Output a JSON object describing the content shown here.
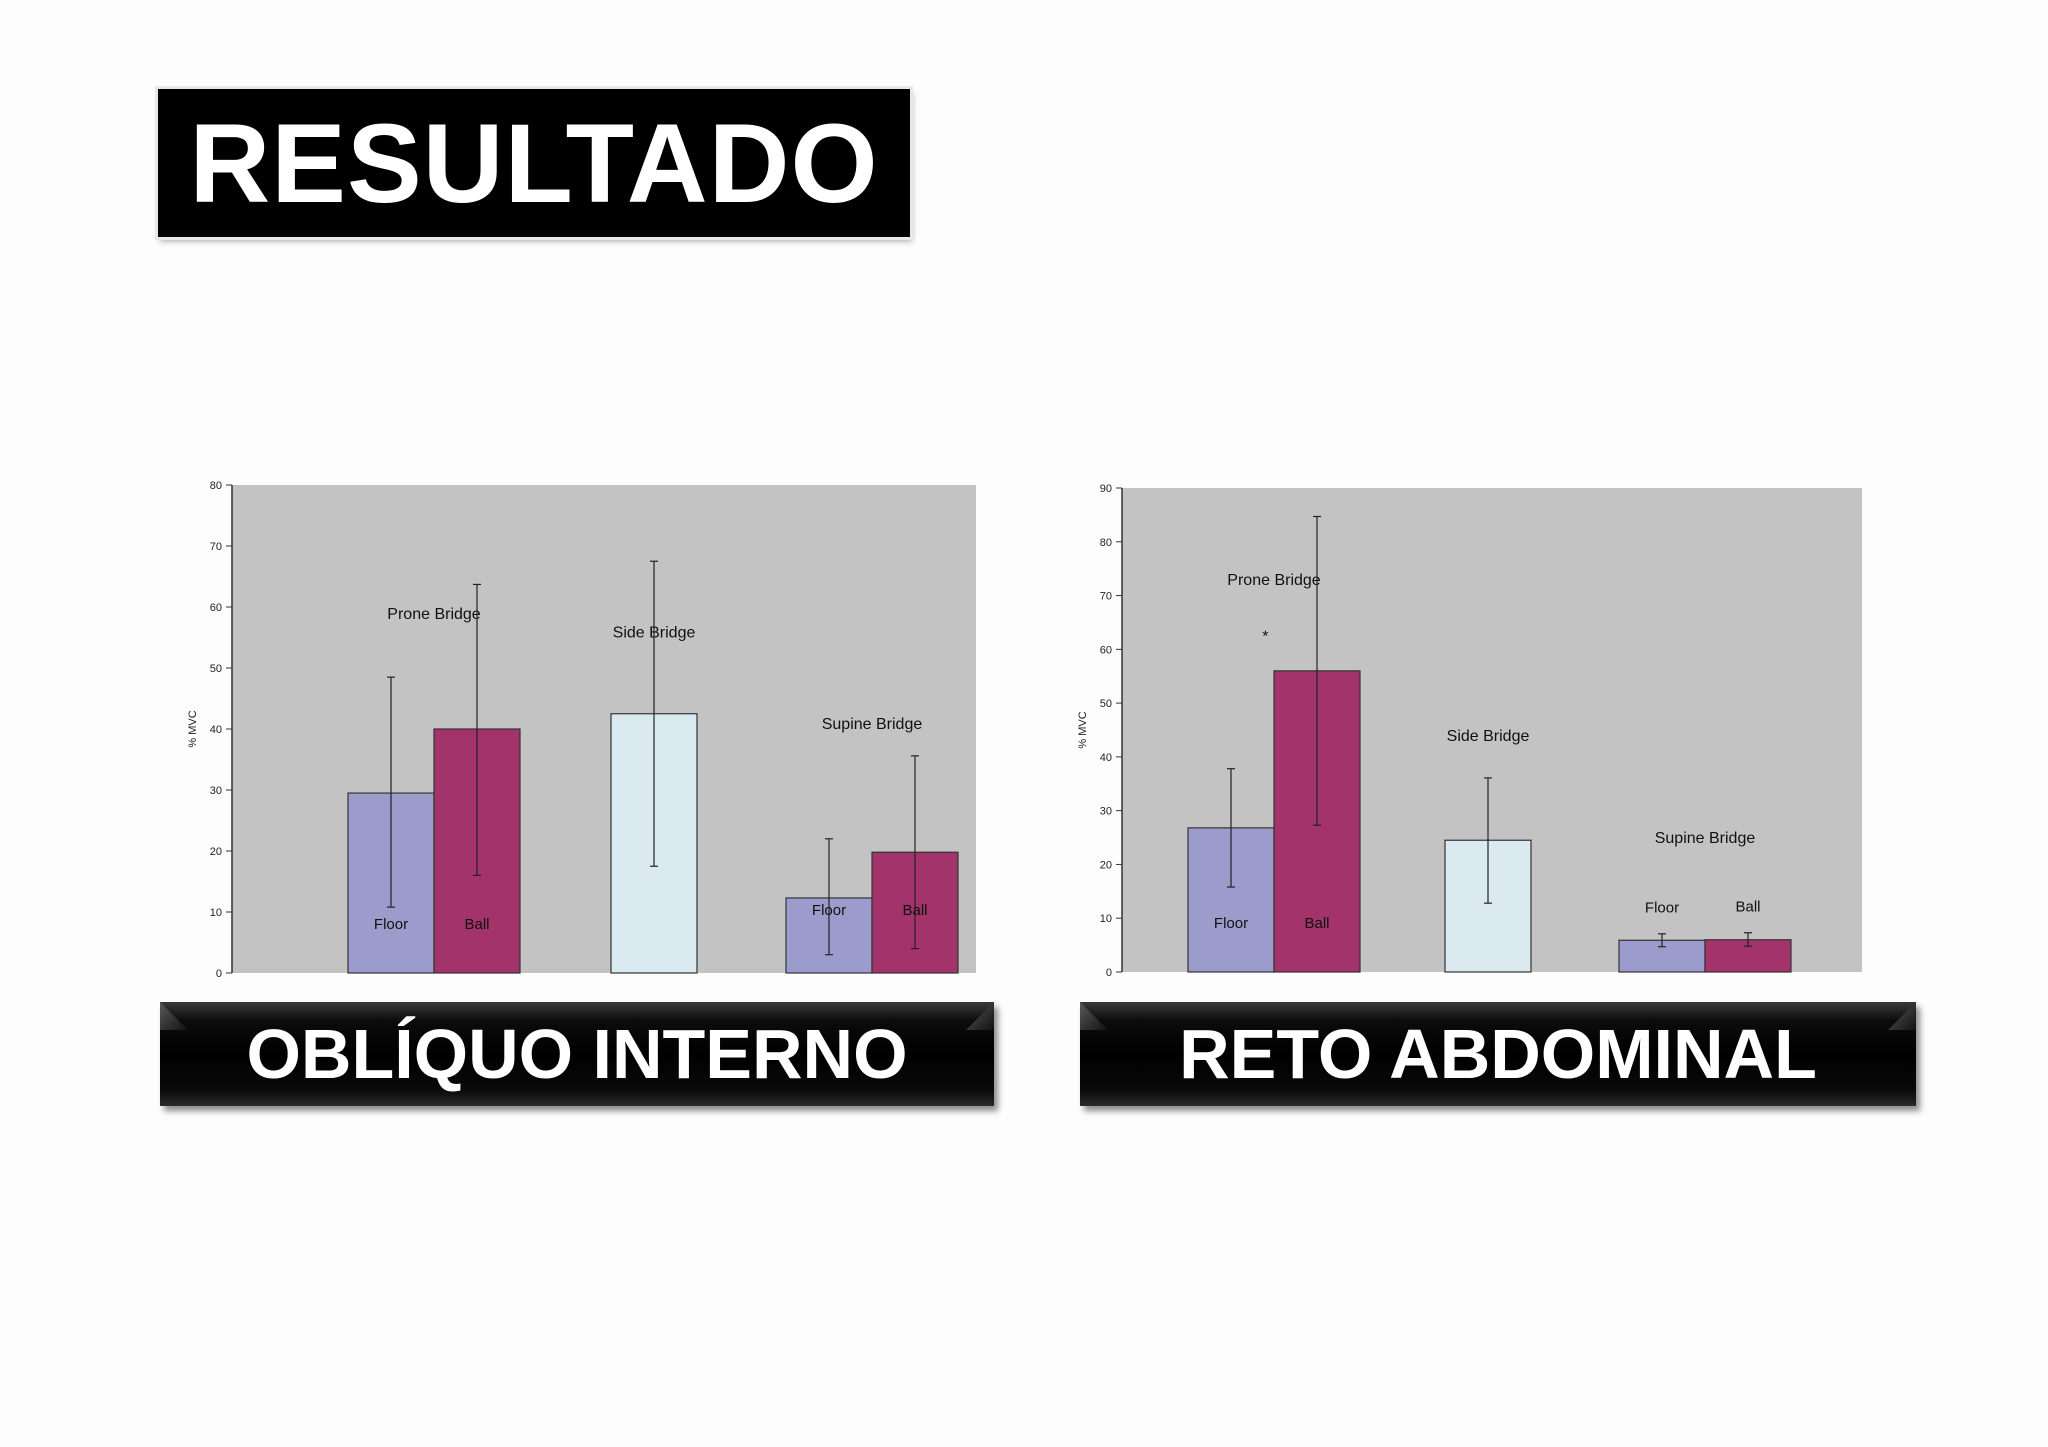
{
  "title": "RESULTADO",
  "banners": {
    "left": "OBLÍQUO INTERNO",
    "right": "RETO ABDOMINAL"
  },
  "colors": {
    "plot_bg": "#c3c3c3",
    "floor": "#9c9ccc",
    "ball": "#a3336b",
    "side": "#daeaf0"
  },
  "chart_data": [
    {
      "type": "bar",
      "ylabel": "% MVC",
      "ylim": [
        0,
        80
      ],
      "yticks": [
        0,
        10,
        20,
        30,
        40,
        50,
        60,
        70,
        80
      ],
      "grid": false,
      "groups": [
        {
          "label": "Prone Bridge",
          "bars": [
            {
              "label": "Floor",
              "value": 29.5,
              "err_low": 10.8,
              "err_high": 48.5,
              "color": "floor"
            },
            {
              "label": "Ball",
              "value": 40,
              "err_low": 16,
              "err_high": 63.7,
              "color": "ball"
            }
          ]
        },
        {
          "label": "Side Bridge",
          "bars": [
            {
              "label": "",
              "value": 42.5,
              "err_low": 17.5,
              "err_high": 67.5,
              "color": "side"
            }
          ]
        },
        {
          "label": "Supine Bridge",
          "bars": [
            {
              "label": "Floor",
              "value": 12.3,
              "err_low": 3,
              "err_high": 22,
              "color": "floor"
            },
            {
              "label": "Ball",
              "value": 19.8,
              "err_low": 4,
              "err_high": 35.6,
              "color": "ball"
            }
          ]
        }
      ],
      "annotations": []
    },
    {
      "type": "bar",
      "ylabel": "% MVC",
      "ylim": [
        0,
        90
      ],
      "yticks": [
        0,
        10,
        20,
        30,
        40,
        50,
        60,
        70,
        80,
        90
      ],
      "grid": false,
      "groups": [
        {
          "label": "Prone Bridge",
          "bars": [
            {
              "label": "Floor",
              "value": 26.8,
              "err_low": 15.8,
              "err_high": 37.8,
              "color": "floor"
            },
            {
              "label": "Ball",
              "value": 56,
              "err_low": 27.3,
              "err_high": 84.7,
              "color": "ball"
            }
          ]
        },
        {
          "label": "Side Bridge",
          "bars": [
            {
              "label": "",
              "value": 24.5,
              "err_low": 12.8,
              "err_high": 36.1,
              "color": "side"
            }
          ]
        },
        {
          "label": "Supine Bridge",
          "bars": [
            {
              "label": "Floor",
              "value": 5.9,
              "err_low": 4.7,
              "err_high": 7.1,
              "color": "floor"
            },
            {
              "label": "Ball",
              "value": 6,
              "err_low": 4.8,
              "err_high": 7.3,
              "color": "ball"
            }
          ]
        }
      ],
      "annotations": [
        "*"
      ]
    }
  ]
}
